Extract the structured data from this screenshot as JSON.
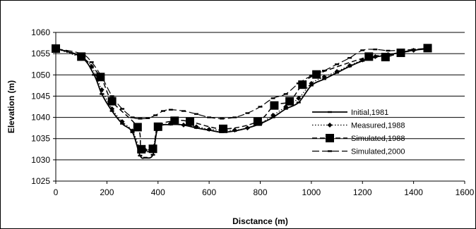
{
  "chart_data": {
    "type": "line",
    "title": "",
    "xlabel": "Disctance (m)",
    "ylabel": "Elevation (m)",
    "xlim": [
      0,
      1600
    ],
    "ylim": [
      1025,
      1060
    ],
    "xticks": [
      0,
      200,
      400,
      600,
      800,
      1000,
      1200,
      1400,
      1600
    ],
    "yticks": [
      1025,
      1030,
      1035,
      1040,
      1045,
      1050,
      1055,
      1060
    ],
    "grid": "horizontal",
    "legend_position": "right",
    "series": [
      {
        "name": "Initial,1981",
        "style": "solid-small-marker",
        "x": [
          0,
          100,
          150,
          180,
          220,
          260,
          300,
          330,
          350,
          380,
          400,
          450,
          500,
          550,
          600,
          650,
          700,
          750,
          800,
          850,
          900,
          950,
          1000,
          1050,
          1100,
          1150,
          1200,
          1250,
          1300,
          1350,
          1400,
          1460
        ],
        "y": [
          1056.2,
          1054.2,
          1050.0,
          1045.5,
          1041.5,
          1038.5,
          1036.5,
          1031.0,
          1030.5,
          1031.2,
          1037.5,
          1038.3,
          1038.2,
          1037.5,
          1037.0,
          1036.5,
          1036.8,
          1037.5,
          1038.5,
          1040.0,
          1042.0,
          1043.5,
          1047.5,
          1049.0,
          1050.5,
          1052.0,
          1053.3,
          1054.2,
          1054.7,
          1055.3,
          1055.8,
          1056.2
        ]
      },
      {
        "name": "Measured,1988",
        "style": "dotted-diamond",
        "x": [
          0,
          100,
          140,
          180,
          220,
          260,
          300,
          330,
          350,
          380,
          400,
          450,
          500,
          550,
          600,
          650,
          700,
          750,
          800,
          850,
          900,
          950,
          1000,
          1050,
          1100,
          1150,
          1200,
          1250,
          1300,
          1350,
          1400,
          1460
        ],
        "y": [
          1056.2,
          1054.0,
          1052.0,
          1046.5,
          1042.0,
          1039.0,
          1036.8,
          1032.5,
          1032.3,
          1033.0,
          1037.3,
          1038.6,
          1038.2,
          1037.8,
          1037.2,
          1037.0,
          1037.0,
          1037.5,
          1038.6,
          1040.5,
          1042.5,
          1044.5,
          1048.0,
          1049.5,
          1050.8,
          1052.2,
          1053.5,
          1054.3,
          1054.8,
          1055.3,
          1055.8,
          1056.2
        ]
      },
      {
        "name": "Simulated,1988",
        "style": "dashed-square",
        "x": [
          0,
          100,
          175,
          220,
          320,
          335,
          380,
          400,
          465,
          525,
          655,
          790,
          855,
          915,
          965,
          1020,
          1225,
          1290,
          1350,
          1455
        ],
        "y": [
          1056.2,
          1054.3,
          1049.5,
          1043.8,
          1037.7,
          1032.5,
          1032.6,
          1037.8,
          1039.2,
          1039.0,
          1037.3,
          1039.0,
          1042.8,
          1043.8,
          1047.7,
          1050.1,
          1054.3,
          1054.2,
          1055.2,
          1056.3
        ]
      },
      {
        "name": "Simulated,2000",
        "style": "long-dash-small-marker",
        "x": [
          0,
          100,
          140,
          180,
          220,
          260,
          300,
          330,
          360,
          390,
          420,
          450,
          500,
          550,
          600,
          650,
          700,
          750,
          800,
          850,
          900,
          950,
          1000,
          1050,
          1100,
          1150,
          1200,
          1250,
          1300,
          1350,
          1400,
          1460
        ],
        "y": [
          1056.2,
          1055.0,
          1053.0,
          1049.5,
          1045.0,
          1042.0,
          1040.0,
          1039.7,
          1039.8,
          1040.5,
          1041.5,
          1041.8,
          1041.5,
          1040.8,
          1040.0,
          1039.7,
          1040.0,
          1041.0,
          1042.5,
          1044.5,
          1045.5,
          1048.0,
          1049.8,
          1051.0,
          1052.5,
          1054.0,
          1055.8,
          1056.0,
          1055.7,
          1055.8,
          1056.0,
          1056.3
        ]
      }
    ]
  }
}
